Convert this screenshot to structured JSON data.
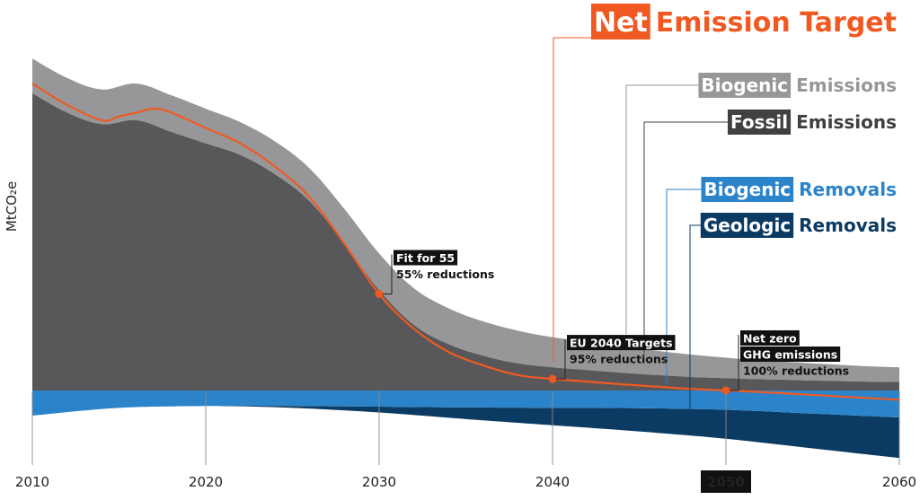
{
  "chart_data": {
    "type": "area",
    "ylabel": "MtCO₂e",
    "x_ticks": [
      "2010",
      "2020",
      "2030",
      "2040",
      "2050",
      "2060"
    ],
    "highlighted_tick": "2050",
    "xlim": [
      2010,
      2060
    ],
    "series": [
      {
        "name": "Fossil Emissions",
        "color": "#58585a",
        "x": [
          2010,
          2012,
          2014,
          2016,
          2018,
          2020,
          2022,
          2024,
          2026,
          2028,
          2030,
          2032,
          2034,
          2036,
          2038,
          2040,
          2042,
          2044,
          2046,
          2048,
          2050,
          2052,
          2054,
          2056,
          2058,
          2060
        ],
        "values": [
          77,
          72,
          69,
          70,
          67,
          64,
          61,
          56,
          49,
          38,
          26,
          17,
          12,
          9,
          7,
          6,
          5.3,
          4.6,
          4,
          3.5,
          3.2,
          2.9,
          2.7,
          2.5,
          2.3,
          2.2
        ]
      },
      {
        "name": "Biogenic Emissions",
        "color": "#97979a",
        "x": [
          2010,
          2012,
          2014,
          2016,
          2018,
          2020,
          2022,
          2024,
          2026,
          2028,
          2030,
          2032,
          2034,
          2036,
          2038,
          2040,
          2042,
          2044,
          2046,
          2048,
          2050,
          2052,
          2054,
          2056,
          2058,
          2060
        ],
        "values": [
          9,
          9,
          9,
          9.5,
          9.5,
          9,
          8.5,
          8.5,
          8.5,
          9,
          9.5,
          9.5,
          9.3,
          8.9,
          8.5,
          7.8,
          7.3,
          6.8,
          6.3,
          5.8,
          5.3,
          4.9,
          4.6,
          4.3,
          4,
          3.8
        ]
      },
      {
        "name": "Biogenic Removals",
        "color": "#2b83c9",
        "x": [
          2010,
          2015,
          2020,
          2025,
          2030,
          2035,
          2040,
          2045,
          2050,
          2055,
          2060
        ],
        "values": [
          -6.5,
          -4.5,
          -4,
          -4,
          -4.2,
          -4.4,
          -4.5,
          -4.6,
          -5,
          -6,
          -7
        ]
      },
      {
        "name": "Geologic Removals",
        "color": "#0b3b63",
        "x": [
          2010,
          2015,
          2020,
          2025,
          2030,
          2035,
          2040,
          2045,
          2050,
          2055,
          2060
        ],
        "values": [
          0,
          0,
          0,
          -0.5,
          -1.5,
          -3,
          -4.5,
          -6,
          -7.5,
          -9,
          -10.5
        ]
      }
    ],
    "net_line": {
      "name": "Net Emission Target",
      "color": "#f05a22",
      "x": [
        2010,
        2012,
        2014,
        2015,
        2016,
        2017,
        2018,
        2020,
        2022,
        2024,
        2026,
        2028,
        2030,
        2032,
        2034,
        2036,
        2038,
        2040,
        2042,
        2044,
        2046,
        2048,
        2050,
        2052,
        2054,
        2056,
        2058,
        2060
      ],
      "values": [
        79.5,
        74,
        70,
        71,
        72,
        73,
        72,
        68,
        64,
        58,
        50,
        38,
        25,
        16,
        10,
        6.5,
        4,
        3,
        2.3,
        1.6,
        1,
        0.4,
        0,
        -0.4,
        -0.9,
        -1.4,
        -1.9,
        -2.4
      ]
    },
    "annotations": [
      {
        "year": 2030,
        "value": 45,
        "lines": [
          "Fit for 55",
          "55% reductions"
        ],
        "boxed_lines": 1
      },
      {
        "year": 2040,
        "value": 9,
        "lines": [
          "EU 2040 Targets",
          "95% reductions"
        ],
        "boxed_lines": 1
      },
      {
        "year": 2050,
        "value": 0,
        "lines": [
          "Net zero",
          "GHG emissions",
          "100% reductions"
        ],
        "boxed_lines": 2
      }
    ],
    "legend": [
      {
        "key": "net",
        "box_text": "Net",
        "rest_text": "Emission Target",
        "color": "#f05a22"
      },
      {
        "key": "bio_em",
        "box_text": "Biogenic",
        "rest_text": "Emissions",
        "color": "#97979a"
      },
      {
        "key": "fos_em",
        "box_text": "Fossil",
        "rest_text": "Emissions",
        "color": "#404042"
      },
      {
        "key": "bio_rm",
        "box_text": "Biogenic",
        "rest_text": "Removals",
        "color": "#2b83c9"
      },
      {
        "key": "geo_rm",
        "box_text": "Geologic",
        "rest_text": "Removals",
        "color": "#0b3b63"
      }
    ]
  }
}
